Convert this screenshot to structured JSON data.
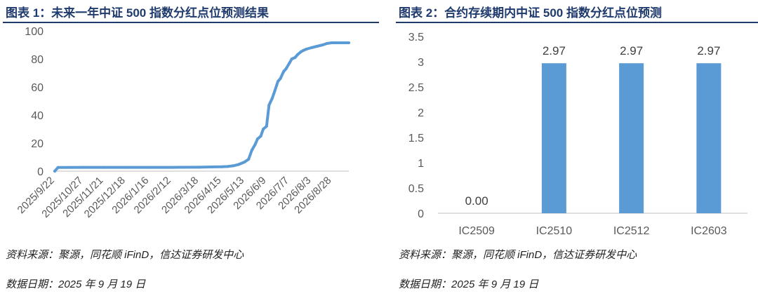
{
  "left": {
    "title": "图表 1：未来一年中证 500 指数分红点位预测结果",
    "source": "资料来源：聚源，同花顺 iFinD，信达证券研发中心",
    "date": "数据日期：2025 年 9 月 19 日"
  },
  "right": {
    "title": "图表 2：合约存续期内中证 500 指数分红点位预测",
    "source": "资料来源：聚源，同花顺 iFinD，信达证券研发中心",
    "date": "数据日期：2025 年 9 月 19 日"
  },
  "chart_data": [
    {
      "type": "line",
      "title": "未来一年中证 500 指数分红点位预测结果",
      "xlabel": "",
      "ylabel": "",
      "ylim": [
        0,
        100
      ],
      "yticks": [
        0,
        20,
        40,
        60,
        80,
        100
      ],
      "grid": false,
      "color": "#5b9bd5",
      "tick_labels": [
        "2025/9/22",
        "2025/10/27",
        "2025/11/21",
        "2025/12/18",
        "2026/1/16",
        "2026/2/12",
        "2026/3/18",
        "2026/4/15",
        "2026/5/13",
        "2026/6/9",
        "2026/7/7",
        "2026/8/3",
        "2026/8/28"
      ],
      "x": [
        "2025/9/22",
        "2025/9/26",
        "2025/10/27",
        "2025/11/21",
        "2025/12/18",
        "2026/1/16",
        "2026/2/12",
        "2026/3/18",
        "2026/4/1",
        "2026/4/15",
        "2026/4/22",
        "2026/4/29",
        "2026/5/6",
        "2026/5/13",
        "2026/5/18",
        "2026/5/22",
        "2026/5/26",
        "2026/5/29",
        "2026/6/2",
        "2026/6/5",
        "2026/6/9",
        "2026/6/12",
        "2026/6/16",
        "2026/6/19",
        "2026/6/23",
        "2026/6/26",
        "2026/6/30",
        "2026/7/3",
        "2026/7/7",
        "2026/7/10",
        "2026/7/14",
        "2026/7/17",
        "2026/7/21",
        "2026/7/24",
        "2026/7/28",
        "2026/8/3",
        "2026/8/10",
        "2026/8/17",
        "2026/8/22",
        "2026/8/28",
        "2026/9/4",
        "2026/9/11",
        "2026/9/18"
      ],
      "values": [
        0,
        2.6,
        2.7,
        2.7,
        2.7,
        2.7,
        2.7,
        2.8,
        3.0,
        3.1,
        3.3,
        3.8,
        4.8,
        6.5,
        8.5,
        15,
        19,
        23,
        25,
        30,
        32,
        47,
        52,
        57,
        64,
        66,
        71,
        73,
        77,
        80,
        81,
        83,
        85,
        86,
        87,
        88,
        89,
        90,
        91,
        91.5,
        91.5,
        91.5,
        91.5
      ]
    },
    {
      "type": "bar",
      "title": "合约存续期内中证 500 指数分红点位预测",
      "xlabel": "",
      "ylabel": "",
      "ylim": [
        0,
        3.5
      ],
      "yticks": [
        0,
        0.5,
        1,
        1.5,
        2,
        2.5,
        3,
        3.5
      ],
      "grid": false,
      "color": "#5b9bd5",
      "categories": [
        "IC2509",
        "IC2510",
        "IC2512",
        "IC2603"
      ],
      "values": [
        0.0,
        2.97,
        2.97,
        2.97
      ],
      "value_labels": [
        "0.00",
        "2.97",
        "2.97",
        "2.97"
      ]
    }
  ]
}
